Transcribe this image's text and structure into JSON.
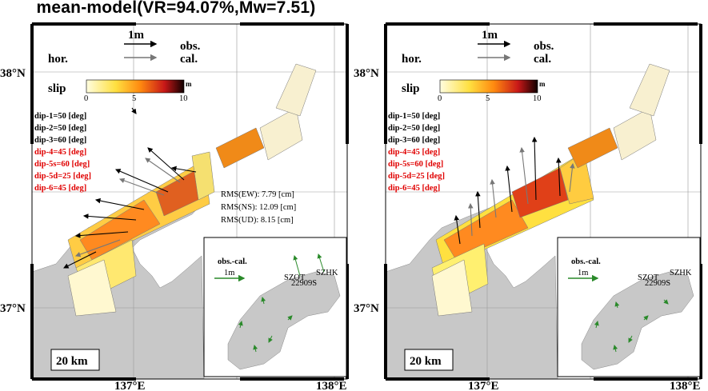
{
  "title": "mean-model(VR=94.07%,Mw=7.51)",
  "lat_labels": [
    "38°N",
    "37°N"
  ],
  "lon_labels": [
    "137°E",
    "138°E"
  ],
  "legend": {
    "scale": "1m",
    "obs": "obs.",
    "cal": "cal.",
    "hor": "hor.",
    "slip": "slip",
    "unit": "m",
    "ticks": [
      "0",
      "5",
      "10"
    ]
  },
  "dip_labels": [
    {
      "text": "dip-1=50 [deg]",
      "color": "#000000"
    },
    {
      "text": "dip-2=50 [deg]",
      "color": "#000000"
    },
    {
      "text": "dip-3=60 [deg]",
      "color": "#000000"
    },
    {
      "text": "dip-4=45 [deg]",
      "color": "#e00000"
    },
    {
      "text": "dip-5s=60 [deg]",
      "color": "#e00000"
    },
    {
      "text": "dip-5d=25 [deg]",
      "color": "#e00000"
    },
    {
      "text": "dip-6=45 [deg]",
      "color": "#e00000"
    }
  ],
  "rms": [
    "RMS(EW): 7.79 [cm]",
    "RMS(NS): 12.09 [cm]",
    "RMS(UD): 8.15 [cm]"
  ],
  "inset": {
    "label": "obs.-cal.",
    "scale": "1m",
    "stations": [
      "SZOT",
      "22909S",
      "SZHK"
    ]
  },
  "scalebar": "20 km",
  "colors": {
    "obs": "#000000",
    "cal": "#888888",
    "residual": "#2a8a2a",
    "land": "#c8c8c8"
  }
}
